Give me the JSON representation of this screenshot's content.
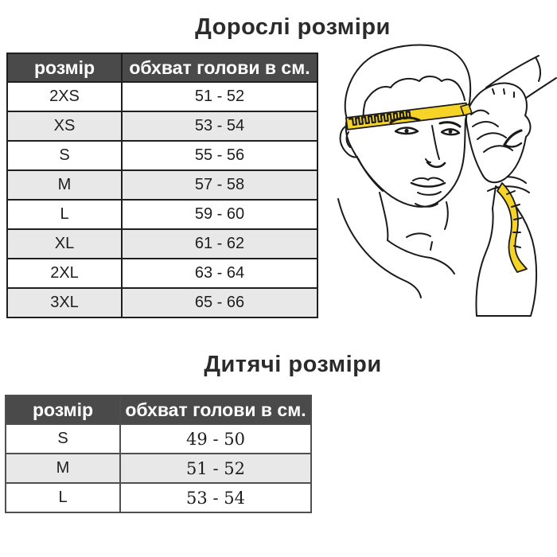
{
  "adult": {
    "title": "Дорослі розміри",
    "headers": [
      "розмір",
      "обхват голови в см."
    ],
    "rows": [
      {
        "size": "2XS",
        "range": "51 - 52"
      },
      {
        "size": "XS",
        "range": "53 - 54"
      },
      {
        "size": "S",
        "range": "55 - 56"
      },
      {
        "size": "M",
        "range": "57 - 58"
      },
      {
        "size": "L",
        "range": "59 - 60"
      },
      {
        "size": "XL",
        "range": "61 - 62"
      },
      {
        "size": "2XL",
        "range": "63 - 64"
      },
      {
        "size": "3XL",
        "range": "65 - 66"
      }
    ]
  },
  "children": {
    "title": "Дитячі розміри",
    "headers": [
      "розмір",
      "обхват голови в см."
    ],
    "rows": [
      {
        "size": "S",
        "range": "49 - 50"
      },
      {
        "size": "M",
        "range": "51 - 52"
      },
      {
        "size": "L",
        "range": "53 - 54"
      }
    ]
  },
  "illustration": {
    "name": "head-circumference-measurement-illustration",
    "tape_color": "#f5d327"
  },
  "colors": {
    "header_bg": "#4a4a4a",
    "header_text": "#ffffff",
    "row_alt_bg": "#e8e8e8",
    "adult_border": "#1f1f1f",
    "children_border": "#4f4f4f",
    "title_text": "#2b2b2b"
  }
}
